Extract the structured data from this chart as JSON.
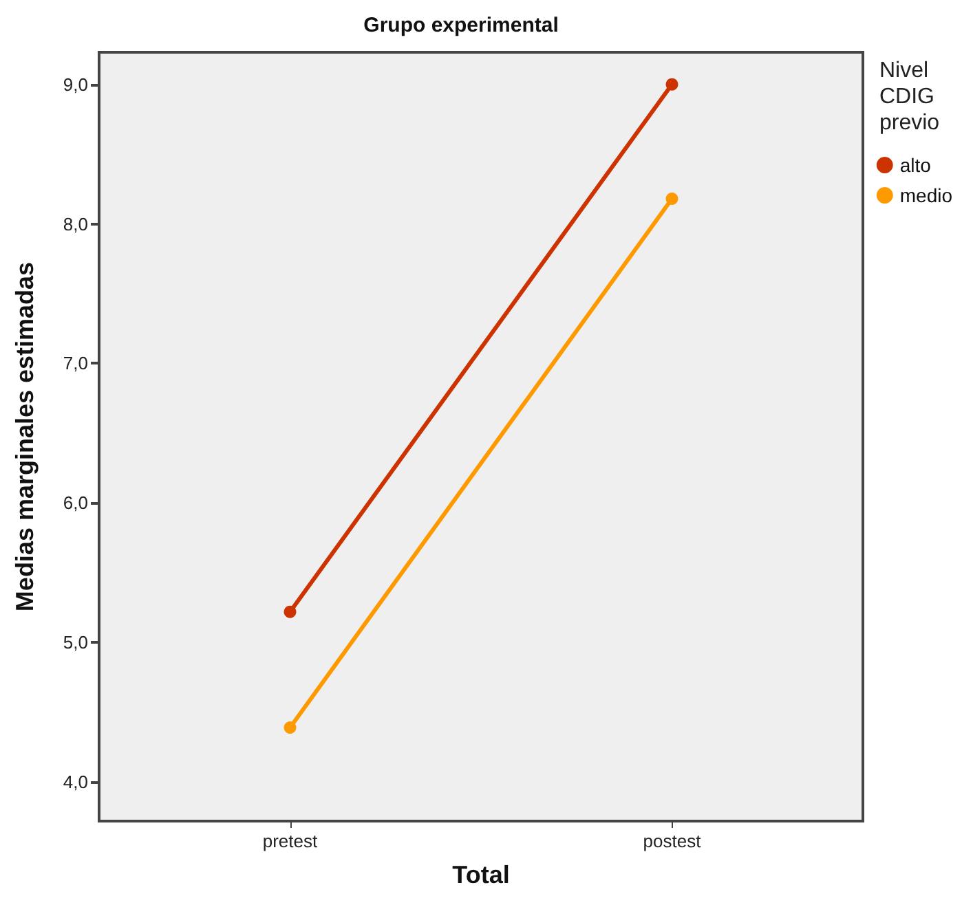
{
  "chart_data": {
    "type": "line",
    "title": "Grupo experimental",
    "xlabel": "Total",
    "ylabel": "Medias marginales estimadas",
    "legend_title": "Nivel CDIG previo",
    "categories": [
      "pretest",
      "postest"
    ],
    "series": [
      {
        "name": "alto",
        "color": "#cc3300",
        "values": [
          5.22,
          9.0
        ]
      },
      {
        "name": "medio",
        "color": "#ff9900",
        "values": [
          4.39,
          8.18
        ]
      }
    ],
    "ylim": [
      3.72,
      9.23
    ],
    "yticks": [
      {
        "value": 4,
        "label": "4,0"
      },
      {
        "value": 5,
        "label": "5,0"
      },
      {
        "value": 6,
        "label": "6,0"
      },
      {
        "value": 7,
        "label": "7,0"
      },
      {
        "value": 8,
        "label": "8,0"
      },
      {
        "value": 9,
        "label": "9,0"
      }
    ],
    "grid": false,
    "legend": "right",
    "marker": "circle",
    "line_style": "solid"
  }
}
